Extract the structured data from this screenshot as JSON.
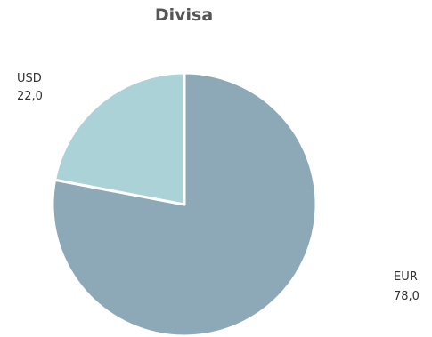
{
  "chart_data": {
    "type": "pie",
    "title": "Divisa",
    "categories": [
      "EUR",
      "USD"
    ],
    "values": [
      78.0,
      22.0
    ],
    "value_labels": [
      "78,0",
      "22,0"
    ],
    "colors": [
      "#8DA9B7",
      "#ABD2D6"
    ],
    "slice_border_color": "#FFFFFF",
    "legend": "none",
    "start_angle_deg": 0,
    "direction": "clockwise"
  }
}
